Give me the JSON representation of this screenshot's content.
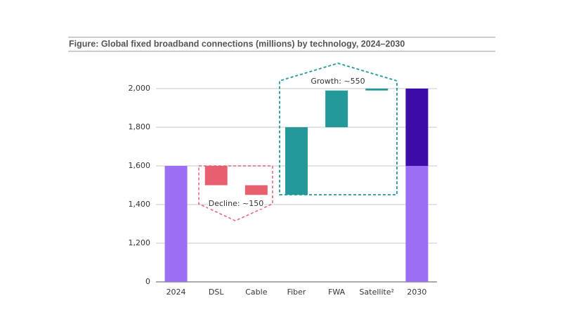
{
  "chart_data": {
    "type": "waterfall",
    "title": "Figure: Global fixed broadband connections (millions) by technology, 2024–2030",
    "categories": [
      "2024",
      "DSL",
      "Cable",
      "Fiber",
      "FWA",
      "Satellite²",
      "2030"
    ],
    "values": [
      1600,
      -100,
      -50,
      350,
      190,
      10,
      2000
    ],
    "total_indices": [
      0,
      6
    ],
    "colors": {
      "total": "#9b6ef3",
      "total_new": "#3d0ca8",
      "decrease": "#e8606f",
      "increase": "#23999a"
    },
    "ylim": [
      0,
      2100
    ],
    "axis_break": [
      0,
      1000
    ],
    "yticks": [
      0,
      {
        "value": 1200,
        "label": "1,200"
      },
      {
        "value": 1400,
        "label": "1,400"
      },
      {
        "value": 1600,
        "label": "1,600"
      },
      {
        "value": 1800,
        "label": "1,800"
      },
      {
        "value": 2000,
        "label": "2,000"
      }
    ],
    "grid": true,
    "annotations": [
      "Decline: ~150",
      "Growth: ~550"
    ]
  }
}
